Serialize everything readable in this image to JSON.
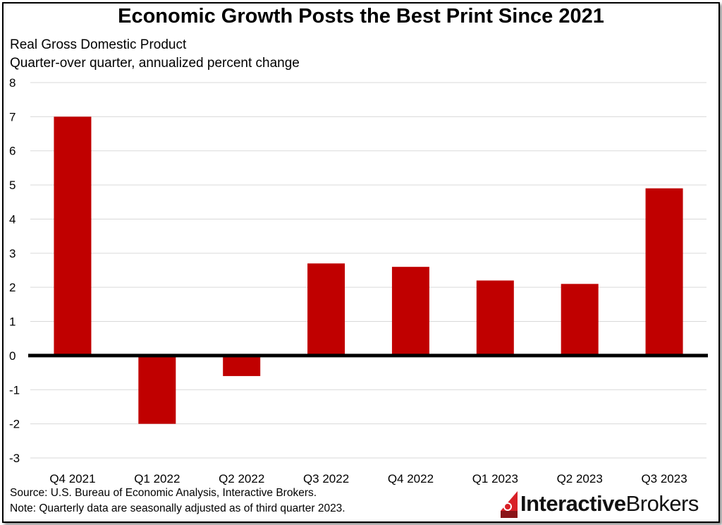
{
  "title": "Economic Growth Posts the Best Print Since 2021",
  "subtitle_line1": "Real Gross Domestic Product",
  "subtitle_line2": "Quarter-over quarter, annualized percent change",
  "source_line1": "Source: U.S. Bureau of Economic Analysis, Interactive Brokers.",
  "source_line2": "Note: Quarterly data are seasonally adjusted as of third quarter 2023.",
  "logo": {
    "text_part1": "Interactive",
    "text_part2": "Brokers",
    "icon": "interactive-brokers-logo-icon",
    "colors": {
      "mark": "#d81f26",
      "text": "#111111"
    }
  },
  "chart_data": {
    "type": "bar",
    "categories": [
      "Q4 2021",
      "Q1 2022",
      "Q2 2022",
      "Q3 2022",
      "Q4 2022",
      "Q1 2023",
      "Q2 2023",
      "Q3 2023"
    ],
    "values": [
      7.0,
      -2.0,
      -0.6,
      2.7,
      2.6,
      2.2,
      2.1,
      4.9
    ],
    "ylim": [
      -3,
      8
    ],
    "yticks": [
      8,
      7,
      6,
      5,
      4,
      3,
      2,
      1,
      0,
      -1,
      -2,
      -3
    ],
    "xlabel": "",
    "ylabel": "",
    "grid": true,
    "legend": "none",
    "bar_color": "#c00000",
    "zero_line_color": "#000000"
  }
}
